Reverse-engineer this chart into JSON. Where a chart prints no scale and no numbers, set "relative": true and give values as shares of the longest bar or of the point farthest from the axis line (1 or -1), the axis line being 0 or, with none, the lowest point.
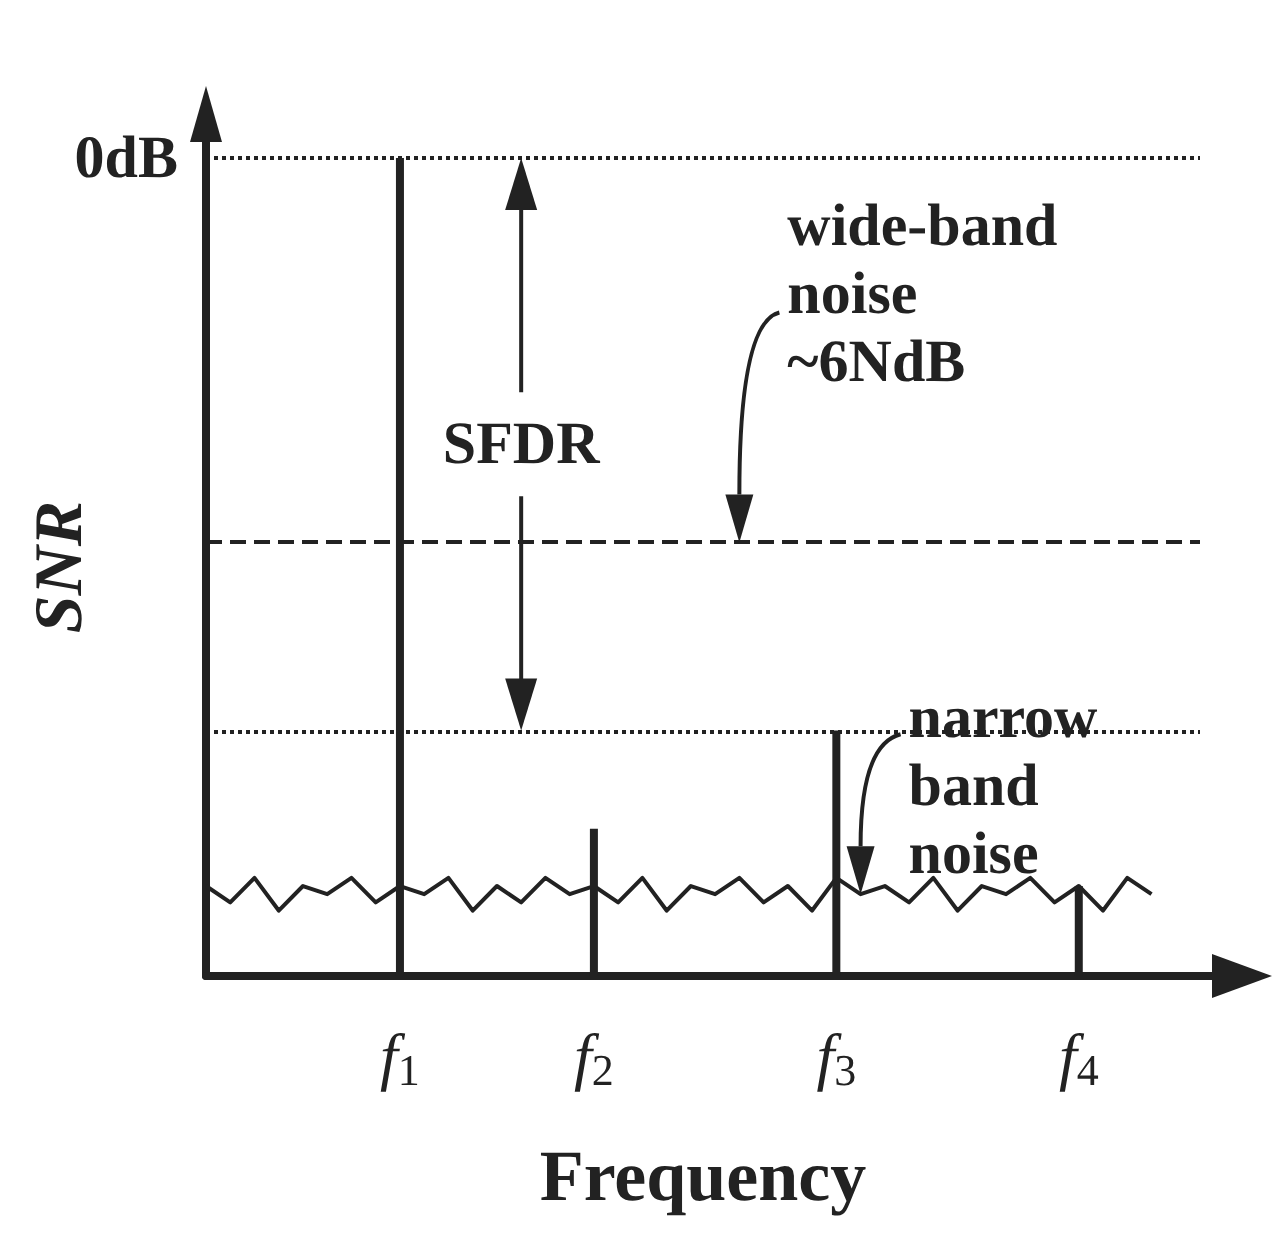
{
  "chart_data": {
    "type": "line",
    "relative": true,
    "xlabel": "Frequency",
    "ylabel": "SNR",
    "categories": [
      null,
      null,
      null,
      null,
      null,
      null,
      null,
      null,
      "f$_{1}$",
      null,
      null,
      null,
      null,
      null,
      null,
      null,
      "f$_{2}$",
      null,
      null,
      null,
      null,
      null,
      null,
      null,
      null,
      null,
      "f$_{3}$",
      null,
      null,
      null,
      null,
      null,
      null,
      null,
      null,
      null,
      "f$_{4}$",
      null,
      null,
      null,
      null,
      null
    ],
    "series": [
      {
        "type": "bar",
        "color": "#222222",
        "values": [
          null,
          null,
          null,
          null,
          null,
          null,
          null,
          null,
          1,
          null,
          null,
          null,
          null,
          null,
          null,
          null,
          0.18,
          null,
          null,
          null,
          null,
          null,
          null,
          null,
          null,
          null,
          0.3,
          null,
          null,
          null,
          null,
          null,
          null,
          null,
          null,
          null,
          0.11,
          null,
          null,
          null,
          null,
          null
        ]
      },
      {
        "color": "#222222",
        "values": [
          0.11,
          0.09,
          0.12,
          0.08,
          0.11,
          0.1,
          0.12,
          0.09,
          0.11,
          0.1,
          0.12,
          0.08,
          0.11,
          0.09,
          0.12,
          0.1,
          0.11,
          0.09,
          0.12,
          0.08,
          0.11,
          0.1,
          0.12,
          0.09,
          0.11,
          0.08,
          0.12,
          0.1,
          0.11,
          0.09,
          0.12,
          0.08,
          0.11,
          0.1,
          0.12,
          0.09,
          0.11,
          0.08,
          0.12,
          0.1,
          null,
          null
        ]
      }
    ],
    "marker": "none",
    "ref_lines": [
      {
        "axis": "y",
        "value": 1,
        "label": "0dB",
        "line_style": "dotted"
      },
      {
        "axis": "y",
        "value": 0.53,
        "line_style": "dashed"
      },
      {
        "axis": "y",
        "value": 0.3,
        "line_style": "dotted"
      }
    ],
    "annotations": [
      "SFDR",
      "wide-band\nnoise\n~6NdB",
      "narrow\nband\nnoise"
    ]
  }
}
